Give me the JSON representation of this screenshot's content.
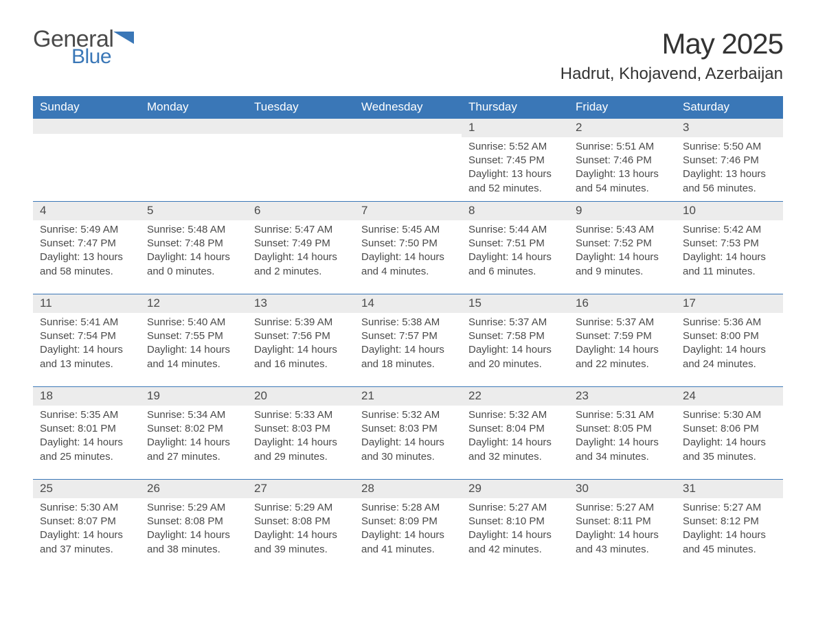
{
  "logo": {
    "textTop": "General",
    "textBottom": "Blue"
  },
  "title": "May 2025",
  "location": "Hadrut, Khojavend, Azerbaijan",
  "colors": {
    "headerBg": "#3a77b7",
    "headerText": "#ffffff",
    "dayBarBg": "#ececec",
    "bodyText": "#4a4a4a",
    "border": "#3a77b7",
    "pageBg": "#ffffff",
    "logoGray": "#4a4a4a",
    "logoBlue": "#3a77b7"
  },
  "typography": {
    "titleSize": 42,
    "locationSize": 24,
    "weekdaySize": 17,
    "dayNumSize": 17,
    "bodySize": 15,
    "fontFamily": "Arial, Helvetica, sans-serif"
  },
  "layout": {
    "columns": 7,
    "rows": 5,
    "widthPx": 1188,
    "heightPx": 918
  },
  "weekdays": [
    "Sunday",
    "Monday",
    "Tuesday",
    "Wednesday",
    "Thursday",
    "Friday",
    "Saturday"
  ],
  "weeks": [
    [
      {
        "empty": true
      },
      {
        "empty": true
      },
      {
        "empty": true
      },
      {
        "empty": true
      },
      {
        "num": "1",
        "sunrise": "Sunrise: 5:52 AM",
        "sunset": "Sunset: 7:45 PM",
        "daylight1": "Daylight: 13 hours",
        "daylight2": "and 52 minutes."
      },
      {
        "num": "2",
        "sunrise": "Sunrise: 5:51 AM",
        "sunset": "Sunset: 7:46 PM",
        "daylight1": "Daylight: 13 hours",
        "daylight2": "and 54 minutes."
      },
      {
        "num": "3",
        "sunrise": "Sunrise: 5:50 AM",
        "sunset": "Sunset: 7:46 PM",
        "daylight1": "Daylight: 13 hours",
        "daylight2": "and 56 minutes."
      }
    ],
    [
      {
        "num": "4",
        "sunrise": "Sunrise: 5:49 AM",
        "sunset": "Sunset: 7:47 PM",
        "daylight1": "Daylight: 13 hours",
        "daylight2": "and 58 minutes."
      },
      {
        "num": "5",
        "sunrise": "Sunrise: 5:48 AM",
        "sunset": "Sunset: 7:48 PM",
        "daylight1": "Daylight: 14 hours",
        "daylight2": "and 0 minutes."
      },
      {
        "num": "6",
        "sunrise": "Sunrise: 5:47 AM",
        "sunset": "Sunset: 7:49 PM",
        "daylight1": "Daylight: 14 hours",
        "daylight2": "and 2 minutes."
      },
      {
        "num": "7",
        "sunrise": "Sunrise: 5:45 AM",
        "sunset": "Sunset: 7:50 PM",
        "daylight1": "Daylight: 14 hours",
        "daylight2": "and 4 minutes."
      },
      {
        "num": "8",
        "sunrise": "Sunrise: 5:44 AM",
        "sunset": "Sunset: 7:51 PM",
        "daylight1": "Daylight: 14 hours",
        "daylight2": "and 6 minutes."
      },
      {
        "num": "9",
        "sunrise": "Sunrise: 5:43 AM",
        "sunset": "Sunset: 7:52 PM",
        "daylight1": "Daylight: 14 hours",
        "daylight2": "and 9 minutes."
      },
      {
        "num": "10",
        "sunrise": "Sunrise: 5:42 AM",
        "sunset": "Sunset: 7:53 PM",
        "daylight1": "Daylight: 14 hours",
        "daylight2": "and 11 minutes."
      }
    ],
    [
      {
        "num": "11",
        "sunrise": "Sunrise: 5:41 AM",
        "sunset": "Sunset: 7:54 PM",
        "daylight1": "Daylight: 14 hours",
        "daylight2": "and 13 minutes."
      },
      {
        "num": "12",
        "sunrise": "Sunrise: 5:40 AM",
        "sunset": "Sunset: 7:55 PM",
        "daylight1": "Daylight: 14 hours",
        "daylight2": "and 14 minutes."
      },
      {
        "num": "13",
        "sunrise": "Sunrise: 5:39 AM",
        "sunset": "Sunset: 7:56 PM",
        "daylight1": "Daylight: 14 hours",
        "daylight2": "and 16 minutes."
      },
      {
        "num": "14",
        "sunrise": "Sunrise: 5:38 AM",
        "sunset": "Sunset: 7:57 PM",
        "daylight1": "Daylight: 14 hours",
        "daylight2": "and 18 minutes."
      },
      {
        "num": "15",
        "sunrise": "Sunrise: 5:37 AM",
        "sunset": "Sunset: 7:58 PM",
        "daylight1": "Daylight: 14 hours",
        "daylight2": "and 20 minutes."
      },
      {
        "num": "16",
        "sunrise": "Sunrise: 5:37 AM",
        "sunset": "Sunset: 7:59 PM",
        "daylight1": "Daylight: 14 hours",
        "daylight2": "and 22 minutes."
      },
      {
        "num": "17",
        "sunrise": "Sunrise: 5:36 AM",
        "sunset": "Sunset: 8:00 PM",
        "daylight1": "Daylight: 14 hours",
        "daylight2": "and 24 minutes."
      }
    ],
    [
      {
        "num": "18",
        "sunrise": "Sunrise: 5:35 AM",
        "sunset": "Sunset: 8:01 PM",
        "daylight1": "Daylight: 14 hours",
        "daylight2": "and 25 minutes."
      },
      {
        "num": "19",
        "sunrise": "Sunrise: 5:34 AM",
        "sunset": "Sunset: 8:02 PM",
        "daylight1": "Daylight: 14 hours",
        "daylight2": "and 27 minutes."
      },
      {
        "num": "20",
        "sunrise": "Sunrise: 5:33 AM",
        "sunset": "Sunset: 8:03 PM",
        "daylight1": "Daylight: 14 hours",
        "daylight2": "and 29 minutes."
      },
      {
        "num": "21",
        "sunrise": "Sunrise: 5:32 AM",
        "sunset": "Sunset: 8:03 PM",
        "daylight1": "Daylight: 14 hours",
        "daylight2": "and 30 minutes."
      },
      {
        "num": "22",
        "sunrise": "Sunrise: 5:32 AM",
        "sunset": "Sunset: 8:04 PM",
        "daylight1": "Daylight: 14 hours",
        "daylight2": "and 32 minutes."
      },
      {
        "num": "23",
        "sunrise": "Sunrise: 5:31 AM",
        "sunset": "Sunset: 8:05 PM",
        "daylight1": "Daylight: 14 hours",
        "daylight2": "and 34 minutes."
      },
      {
        "num": "24",
        "sunrise": "Sunrise: 5:30 AM",
        "sunset": "Sunset: 8:06 PM",
        "daylight1": "Daylight: 14 hours",
        "daylight2": "and 35 minutes."
      }
    ],
    [
      {
        "num": "25",
        "sunrise": "Sunrise: 5:30 AM",
        "sunset": "Sunset: 8:07 PM",
        "daylight1": "Daylight: 14 hours",
        "daylight2": "and 37 minutes."
      },
      {
        "num": "26",
        "sunrise": "Sunrise: 5:29 AM",
        "sunset": "Sunset: 8:08 PM",
        "daylight1": "Daylight: 14 hours",
        "daylight2": "and 38 minutes."
      },
      {
        "num": "27",
        "sunrise": "Sunrise: 5:29 AM",
        "sunset": "Sunset: 8:08 PM",
        "daylight1": "Daylight: 14 hours",
        "daylight2": "and 39 minutes."
      },
      {
        "num": "28",
        "sunrise": "Sunrise: 5:28 AM",
        "sunset": "Sunset: 8:09 PM",
        "daylight1": "Daylight: 14 hours",
        "daylight2": "and 41 minutes."
      },
      {
        "num": "29",
        "sunrise": "Sunrise: 5:27 AM",
        "sunset": "Sunset: 8:10 PM",
        "daylight1": "Daylight: 14 hours",
        "daylight2": "and 42 minutes."
      },
      {
        "num": "30",
        "sunrise": "Sunrise: 5:27 AM",
        "sunset": "Sunset: 8:11 PM",
        "daylight1": "Daylight: 14 hours",
        "daylight2": "and 43 minutes."
      },
      {
        "num": "31",
        "sunrise": "Sunrise: 5:27 AM",
        "sunset": "Sunset: 8:12 PM",
        "daylight1": "Daylight: 14 hours",
        "daylight2": "and 45 minutes."
      }
    ]
  ]
}
